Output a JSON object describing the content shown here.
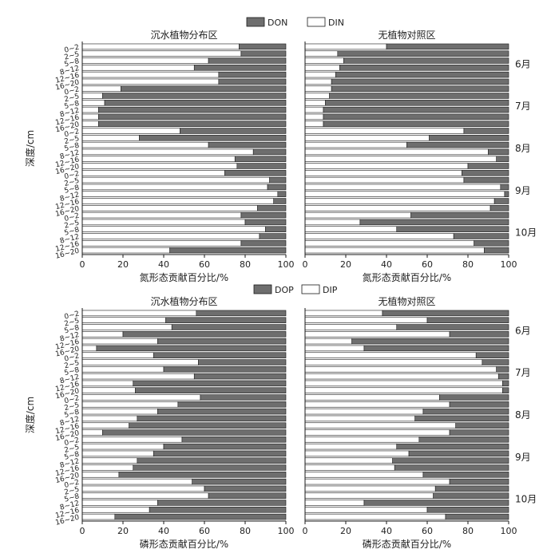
{
  "colors": {
    "dark": "#6e6e6e",
    "light": "#ffffff",
    "stroke": "#1a1a1a"
  },
  "ticks": [
    "0",
    "20",
    "40",
    "60",
    "80",
    "100"
  ],
  "depths": [
    "0~2",
    "2~5",
    "5~8",
    "8~12",
    "12~16",
    "16~20"
  ],
  "months": [
    "6月",
    "7月",
    "8月",
    "9月",
    "10月"
  ],
  "ylabel": "深度/cm",
  "chart_data": [
    {
      "type": "bar",
      "stacked": true,
      "orientation": "horizontal",
      "group": "nitrogen",
      "title": "沉水植物分布区",
      "xlabel": "氮形态贡献百分比/%",
      "xlim": [
        0,
        100
      ],
      "legend": [
        "DON",
        "DIN"
      ],
      "series_name_light": "DIN",
      "series_name_dark": "DON",
      "light_values": [
        77,
        78,
        62,
        55,
        67,
        67,
        19,
        10,
        11,
        8,
        8,
        8,
        48,
        28,
        62,
        84,
        75,
        76,
        70,
        92,
        91,
        96,
        94,
        86,
        78,
        80,
        90,
        87,
        78,
        43
      ]
    },
    {
      "type": "bar",
      "stacked": true,
      "orientation": "horizontal",
      "group": "nitrogen",
      "title": "无植物对照区",
      "xlabel": "氮形态贡献百分比/%",
      "xlim": [
        0,
        100
      ],
      "legend": [
        "DON",
        "DIN"
      ],
      "series_name_light": "DIN",
      "series_name_dark": "DON",
      "light_values": [
        40,
        16,
        19,
        17,
        15,
        13,
        13,
        12,
        10,
        9,
        9,
        9,
        78,
        61,
        50,
        90,
        94,
        80,
        77,
        78,
        96,
        98,
        93,
        91,
        52,
        27,
        45,
        73,
        83,
        88
      ]
    },
    {
      "type": "bar",
      "stacked": true,
      "orientation": "horizontal",
      "group": "phosphorus",
      "title": "沉水植物分布区",
      "xlabel": "磷形态贡献百分比/%",
      "xlim": [
        0,
        100
      ],
      "legend": [
        "DOP",
        "DIP"
      ],
      "series_name_light": "DIP",
      "series_name_dark": "DOP",
      "light_values": [
        56,
        41,
        44,
        20,
        37,
        7,
        35,
        57,
        40,
        55,
        25,
        26,
        58,
        47,
        37,
        27,
        23,
        10,
        49,
        40,
        35,
        27,
        25,
        18,
        54,
        60,
        62,
        37,
        33,
        16
      ]
    },
    {
      "type": "bar",
      "stacked": true,
      "orientation": "horizontal",
      "group": "phosphorus",
      "title": "无植物对照区",
      "xlabel": "磷形态贡献百分比/%",
      "xlim": [
        0,
        100
      ],
      "legend": [
        "DOP",
        "DIP"
      ],
      "series_name_light": "DIP",
      "series_name_dark": "DOP",
      "light_values": [
        38,
        60,
        45,
        71,
        23,
        29,
        84,
        87,
        94,
        95,
        97,
        97,
        66,
        71,
        58,
        54,
        74,
        71,
        56,
        45,
        51,
        43,
        44,
        58,
        71,
        64,
        63,
        29,
        60,
        69
      ]
    }
  ]
}
